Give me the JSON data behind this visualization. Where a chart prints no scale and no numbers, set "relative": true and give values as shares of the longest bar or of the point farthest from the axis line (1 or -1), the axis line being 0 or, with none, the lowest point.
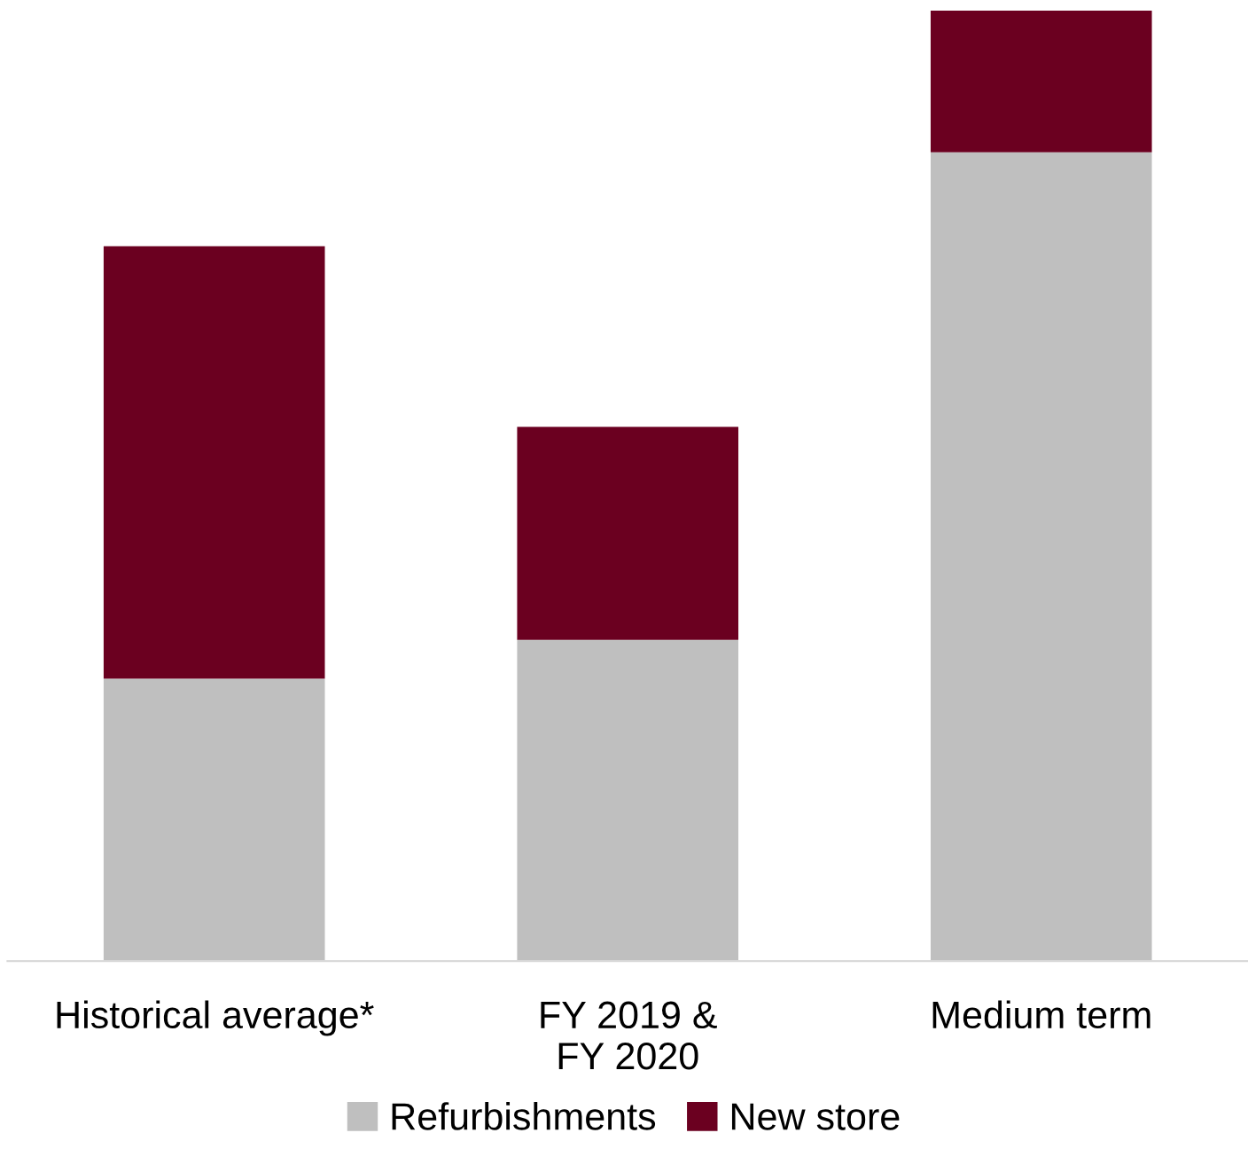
{
  "chart_data": {
    "type": "bar",
    "stacked": true,
    "relative": true,
    "categories": [
      "Historical average*",
      "FY 2019 &\nFY 2020",
      "Medium term"
    ],
    "series": [
      {
        "name": "Refurbishments",
        "color": "#bfbfbf",
        "values": [
          0.297,
          0.338,
          0.851
        ]
      },
      {
        "name": "New store",
        "color": "#6b0020",
        "values": [
          0.455,
          0.224,
          0.149
        ]
      }
    ],
    "legend": "bottom",
    "grid": false
  }
}
